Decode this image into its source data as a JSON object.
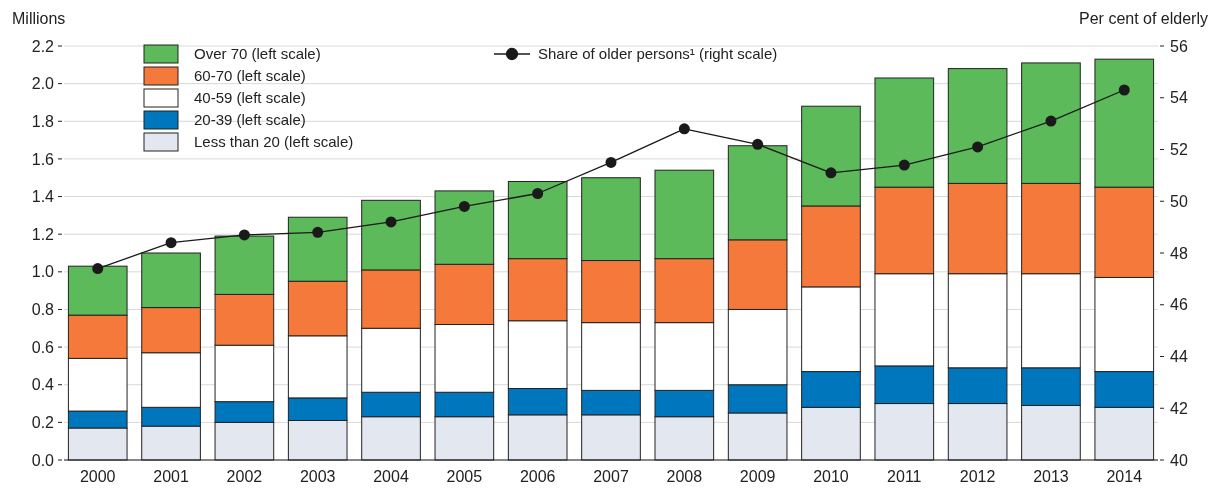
{
  "chart_data": {
    "type": "bar",
    "stacked": true,
    "ylabel": "Millions",
    "y2label": "Per cent of elderly",
    "categories": [
      "2000",
      "2001",
      "2002",
      "2003",
      "2004",
      "2005",
      "2006",
      "2007",
      "2008",
      "2009",
      "2010",
      "2011",
      "2012",
      "2013",
      "2014"
    ],
    "ylim": [
      0,
      2.2
    ],
    "yticks": [
      {
        "value": 0,
        "label": "0.0"
      },
      0.2,
      0.4,
      0.6,
      0.8,
      {
        "value": 1,
        "label": "1.0"
      },
      1.2,
      1.4,
      1.6,
      1.8,
      {
        "value": 2,
        "label": "2.0"
      },
      2.2
    ],
    "y2lim": [
      40,
      56
    ],
    "y2ticks": [
      40,
      42,
      44,
      46,
      48,
      50,
      52,
      54,
      56
    ],
    "grid": "y",
    "legend": "top",
    "marker": "circle",
    "line_style": "solid",
    "series": [
      {
        "name": "Less than 20 (left scale)",
        "color": "#e3e7f0",
        "values": [
          0.17,
          0.18,
          0.2,
          0.21,
          0.23,
          0.23,
          0.24,
          0.24,
          0.23,
          0.25,
          0.28,
          0.3,
          0.3,
          0.29,
          0.28
        ]
      },
      {
        "name": "20-39 (left scale)",
        "color": "#0077bd",
        "values": [
          0.09,
          0.1,
          0.11,
          0.12,
          0.13,
          0.13,
          0.14,
          0.13,
          0.14,
          0.15,
          0.19,
          0.2,
          0.19,
          0.2,
          0.19
        ]
      },
      {
        "name": "40-59 (left scale)",
        "color": "#ffffff",
        "values": [
          0.28,
          0.29,
          0.3,
          0.33,
          0.34,
          0.36,
          0.36,
          0.36,
          0.36,
          0.4,
          0.45,
          0.49,
          0.5,
          0.5,
          0.5
        ]
      },
      {
        "name": "60-70 (left scale)",
        "color": "#f4793b",
        "values": [
          0.23,
          0.24,
          0.27,
          0.29,
          0.31,
          0.32,
          0.33,
          0.33,
          0.34,
          0.37,
          0.43,
          0.46,
          0.48,
          0.48,
          0.48
        ]
      },
      {
        "name": "Over 70 (left scale)",
        "color": "#5cba5a",
        "values": [
          0.26,
          0.29,
          0.31,
          0.34,
          0.37,
          0.39,
          0.41,
          0.44,
          0.47,
          0.5,
          0.53,
          0.58,
          0.61,
          0.64,
          0.68
        ]
      },
      {
        "name": "Share of older persons¹ (right scale)",
        "type": "line",
        "axis": "y2",
        "color": "#1a1a1a",
        "values": [
          47.4,
          48.4,
          48.7,
          48.8,
          49.2,
          49.8,
          50.3,
          51.5,
          52.8,
          52.2,
          51.1,
          51.4,
          52.1,
          53.1,
          54.3
        ]
      }
    ]
  }
}
